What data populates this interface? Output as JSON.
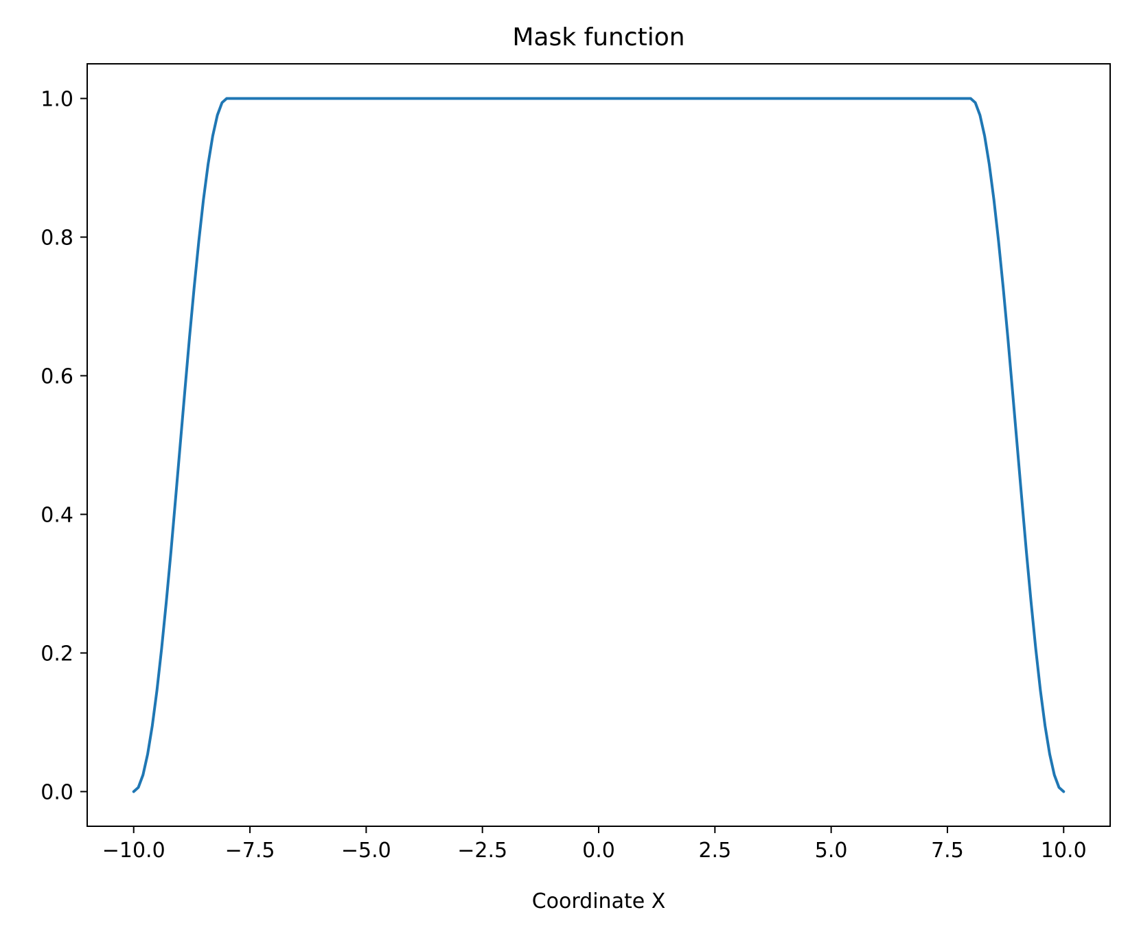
{
  "chart_data": {
    "type": "line",
    "title": "Mask function",
    "xlabel": "Coordinate X",
    "ylabel": "",
    "xlim": [
      -11.0,
      11.0
    ],
    "ylim": [
      -0.05,
      1.05
    ],
    "xticks": [
      -10.0,
      -7.5,
      -5.0,
      -2.5,
      0.0,
      2.5,
      5.0,
      7.5,
      10.0
    ],
    "xtick_labels": [
      "−10.0",
      "−7.5",
      "−5.0",
      "−2.5",
      "0.0",
      "2.5",
      "5.0",
      "7.5",
      "10.0"
    ],
    "yticks": [
      0.0,
      0.2,
      0.4,
      0.6,
      0.8,
      1.0
    ],
    "ytick_labels": [
      "0.0",
      "0.2",
      "0.4",
      "0.6",
      "0.8",
      "1.0"
    ],
    "grid": false,
    "legend": false,
    "series": [
      {
        "color": "#1f77b4",
        "x": [
          -10.0,
          -9.9,
          -9.8,
          -9.7,
          -9.6,
          -9.5,
          -9.4,
          -9.3,
          -9.2,
          -9.1,
          -9.0,
          -8.9,
          -8.8,
          -8.7,
          -8.6,
          -8.5,
          -8.4,
          -8.3,
          -8.2,
          -8.1,
          -8.0,
          8.0,
          8.1,
          8.2,
          8.3,
          8.4,
          8.5,
          8.6,
          8.7,
          8.8,
          8.9,
          9.0,
          9.1,
          9.2,
          9.3,
          9.4,
          9.5,
          9.6,
          9.7,
          9.8,
          9.9,
          10.0
        ],
        "y": [
          0.0,
          0.006,
          0.024,
          0.054,
          0.095,
          0.146,
          0.206,
          0.273,
          0.345,
          0.422,
          0.5,
          0.578,
          0.655,
          0.727,
          0.794,
          0.854,
          0.905,
          0.946,
          0.976,
          0.994,
          1.0,
          1.0,
          0.994,
          0.976,
          0.946,
          0.905,
          0.854,
          0.794,
          0.727,
          0.655,
          0.578,
          0.5,
          0.422,
          0.345,
          0.273,
          0.206,
          0.146,
          0.095,
          0.054,
          0.024,
          0.006,
          0.0
        ]
      }
    ]
  }
}
